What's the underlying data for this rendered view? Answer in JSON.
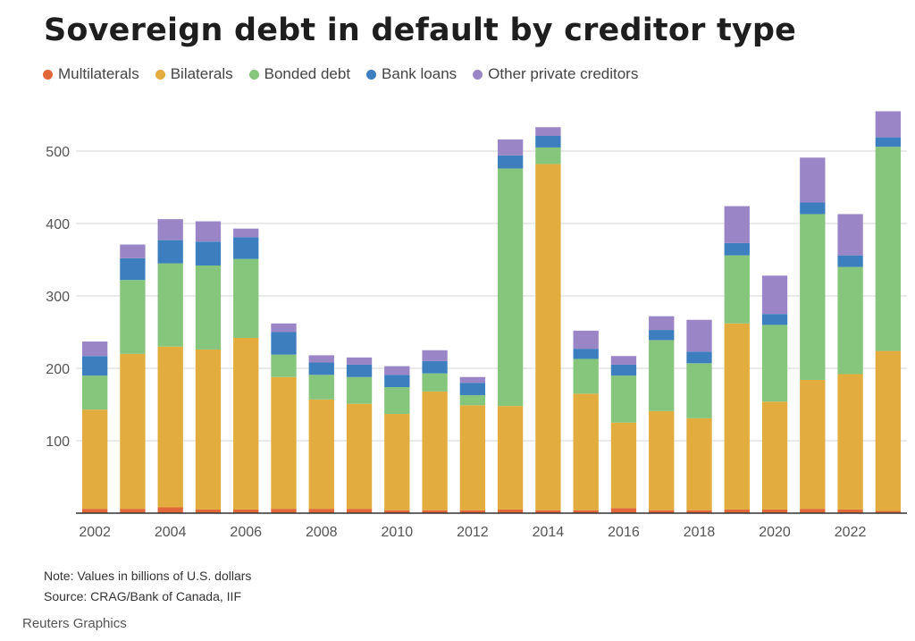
{
  "chart_data": {
    "type": "bar",
    "stacked": true,
    "title": "Sovereign debt in default by creditor type",
    "xlabel": "",
    "ylabel": "",
    "ylim": [
      0,
      560
    ],
    "yticks": [
      100,
      200,
      300,
      400,
      500
    ],
    "xtick_labels": [
      "2002",
      "2004",
      "2006",
      "2008",
      "2010",
      "2012",
      "2014",
      "2016",
      "2018",
      "2020",
      "2022"
    ],
    "categories": [
      "2002",
      "2003",
      "2004",
      "2005",
      "2006",
      "2007",
      "2008",
      "2009",
      "2010",
      "2011",
      "2012",
      "2013",
      "2014",
      "2015",
      "2016",
      "2017",
      "2018",
      "2019",
      "2020",
      "2021",
      "2022",
      "2023"
    ],
    "series": [
      {
        "name": "Multilaterals",
        "color": "#e0673a",
        "values": [
          6,
          6,
          8,
          5,
          5,
          6,
          6,
          6,
          4,
          4,
          4,
          5,
          4,
          4,
          7,
          4,
          4,
          5,
          5,
          6,
          5,
          3
        ]
      },
      {
        "name": "Bilaterals",
        "color": "#e2ac3e",
        "values": [
          137,
          214,
          222,
          221,
          237,
          182,
          151,
          145,
          133,
          164,
          145,
          143,
          478,
          161,
          118,
          137,
          127,
          257,
          149,
          178,
          187,
          221
        ]
      },
      {
        "name": "Bonded debt",
        "color": "#86c57c",
        "values": [
          47,
          102,
          115,
          116,
          109,
          31,
          34,
          37,
          37,
          25,
          14,
          328,
          23,
          48,
          65,
          98,
          76,
          94,
          106,
          229,
          148,
          282
        ]
      },
      {
        "name": "Bank loans",
        "color": "#3d7ebf",
        "values": [
          27,
          30,
          32,
          33,
          30,
          31,
          17,
          17,
          17,
          17,
          17,
          18,
          16,
          14,
          15,
          14,
          16,
          17,
          15,
          16,
          16,
          13
        ]
      },
      {
        "name": "Other private creditors",
        "color": "#9a86c6",
        "values": [
          20,
          19,
          29,
          28,
          12,
          12,
          10,
          10,
          12,
          15,
          8,
          22,
          12,
          25,
          12,
          19,
          44,
          51,
          53,
          62,
          57,
          36
        ]
      }
    ]
  },
  "footer": {
    "note": "Note: Values in billions of U.S. dollars",
    "source": "Source: CRAG/Bank of Canada, IIF",
    "brand": "Reuters Graphics"
  }
}
